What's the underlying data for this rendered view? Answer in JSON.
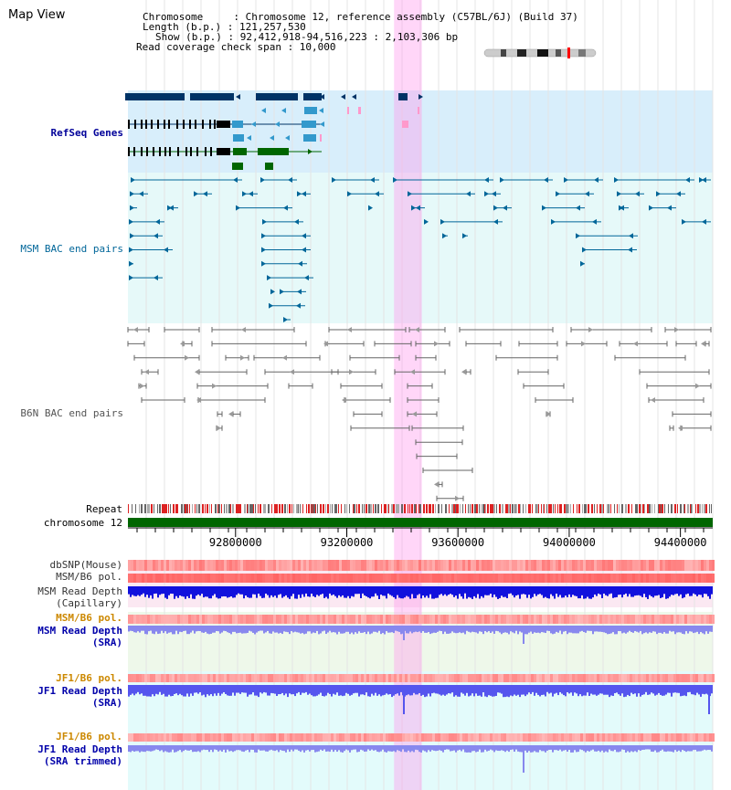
{
  "header": {
    "title": "Map View",
    "info": [
      "Chromosome     : Chromosome 12, reference assembly (C57BL/6J) (Build 37)",
      "Length (b.p.) : 121,257,530",
      "Show (b.p.) : 92,412,918-94,516,223 : 2,103,306 bp",
      "Read coverage check span : 10,000"
    ]
  },
  "region": {
    "start": 92412918,
    "end": 94516223,
    "highlight": [
      93370000,
      93470000
    ]
  },
  "tracks": [
    {
      "label": "RefSeq Genes",
      "color": "#000099"
    },
    {
      "label": "MSM BAC end pairs",
      "color": "#006699"
    },
    {
      "label": "B6N BAC end pairs",
      "color": "#555555"
    },
    {
      "label": "Repeat",
      "color": "#000000"
    },
    {
      "label": "chromosome 12",
      "color": "#000000"
    }
  ],
  "axis": {
    "ticks": [
      "92800000",
      "93200000",
      "93600000",
      "94000000",
      "94400000"
    ]
  },
  "density_tracks": [
    {
      "label": "dbSNP(Mouse)",
      "color": "#333333"
    },
    {
      "label": "MSM/B6 pol.",
      "color": "#333333"
    },
    {
      "label": "MSM Read Depth\n(Capillary)",
      "color": "#333333"
    },
    {
      "label": "MSM/B6 pol.",
      "color": "#cc8800"
    },
    {
      "label": "MSM Read Depth\n(SRA)",
      "color": "#0000aa"
    },
    {
      "label": "JF1/B6 pol.",
      "color": "#cc8800"
    },
    {
      "label": "JF1 Read Depth\n(SRA)",
      "color": "#0000aa"
    },
    {
      "label": "JF1/B6 pol.",
      "color": "#cc8800"
    },
    {
      "label": "JF1 Read Depth\n(SRA trimmed)",
      "color": "#0000aa"
    }
  ],
  "colors": {
    "refseq_dark": "#003366",
    "refseq_mid": "#3399cc",
    "refseq_green": "#006600",
    "msm_bac": "#006699",
    "b6n_bac": "#666666",
    "highlight": "#ff99ee",
    "chrom_band": "#006600"
  }
}
